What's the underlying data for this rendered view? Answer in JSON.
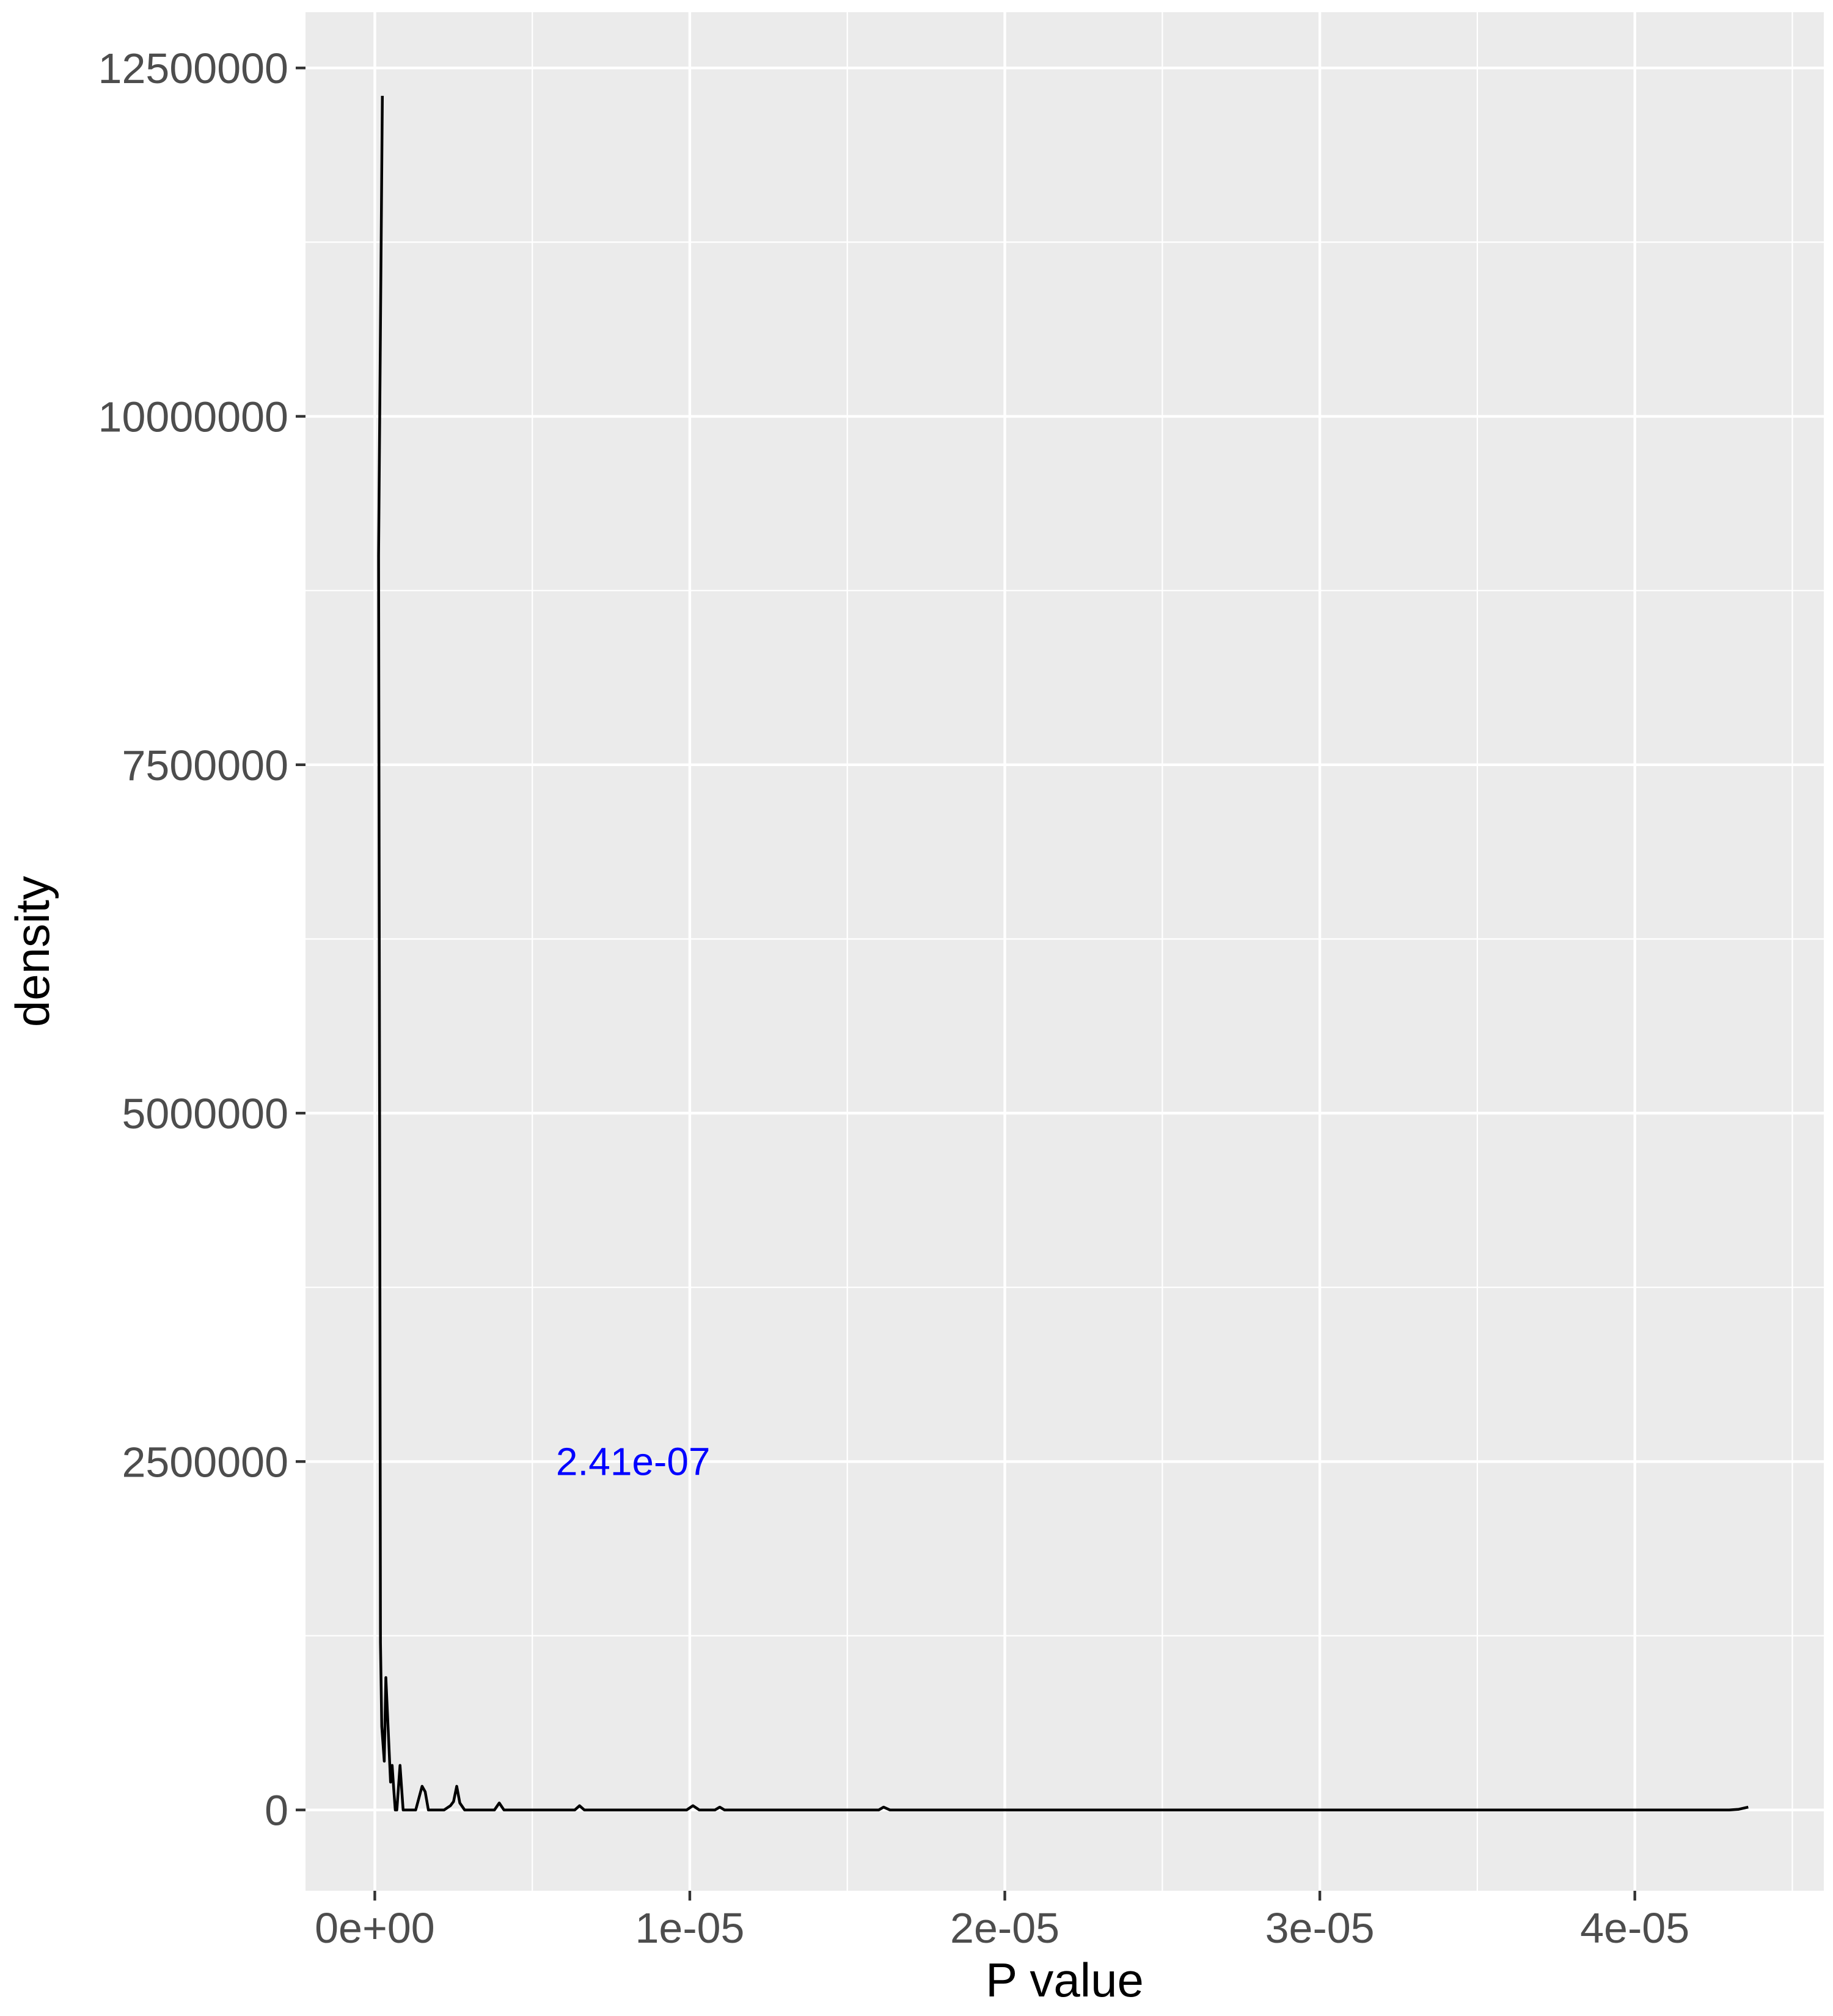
{
  "chart_data": {
    "type": "line",
    "title": "",
    "xlabel": "P value",
    "ylabel": "density",
    "xlim": [
      -2.2e-06,
      4.6e-05
    ],
    "ylim": [
      -580000,
      12900000
    ],
    "x_ticks": [
      0,
      1e-05,
      2e-05,
      3e-05,
      4e-05
    ],
    "x_tick_labels": [
      "0e+00",
      "1e-05",
      "2e-05",
      "3e-05",
      "4e-05"
    ],
    "y_ticks": [
      0,
      2500000,
      5000000,
      7500000,
      10000000,
      12500000
    ],
    "y_tick_labels": [
      "0",
      "2500000",
      "5000000",
      "7500000",
      "10000000",
      "12500000"
    ],
    "x_minor": [
      5e-06,
      1.5e-05,
      2.5e-05,
      3.5e-05,
      4.5e-05
    ],
    "y_minor": [
      1250000,
      3750000,
      6250000,
      8750000,
      11250000
    ],
    "grid": true,
    "annotation": {
      "text": "2.41e-07",
      "x": 8.2e-06,
      "y": 2500000,
      "color": "#0000ff"
    },
    "line_color": "#000000",
    "series": [
      {
        "x": [
          2.41e-07,
          1.2e-07,
          1.6e-07,
          1.8e-07,
          2.2e-07,
          3e-07,
          3.5e-07,
          4.2e-07,
          5e-07,
          5.5e-07,
          6e-07,
          6.5e-07,
          7e-07,
          8e-07,
          9e-07,
          1e-06,
          1.1e-06,
          1.3e-06,
          1.5e-06,
          1.6e-06,
          1.7e-06,
          1.8e-06,
          2.2e-06,
          2.4e-06,
          2.5e-06,
          2.6e-06,
          2.7e-06,
          2.85e-06,
          3.8e-06,
          3.95e-06,
          4.1e-06,
          6.35e-06,
          6.5e-06,
          6.65e-06,
          9.9e-06,
          1.01e-05,
          1.03e-05,
          1.08e-05,
          1.095e-05,
          1.11e-05,
          1.6e-05,
          1.615e-05,
          1.635e-05,
          4.3e-05,
          4.33e-05,
          4.36e-05
        ],
        "y": [
          12300000,
          9000000,
          4000000,
          1200000,
          600000,
          350000,
          950000,
          600000,
          200000,
          320000,
          150000,
          0,
          0,
          320000,
          0,
          0,
          0,
          0,
          170000,
          130000,
          0,
          0,
          0,
          30000,
          60000,
          170000,
          50000,
          0,
          0,
          50000,
          0,
          0,
          30000,
          0,
          0,
          30000,
          0,
          0,
          20000,
          0,
          0,
          20000,
          0,
          0,
          5000,
          20000
        ]
      }
    ]
  }
}
